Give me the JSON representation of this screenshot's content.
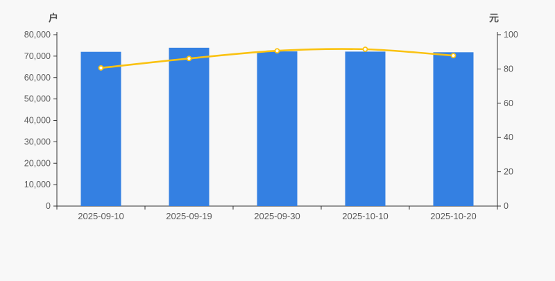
{
  "page": {
    "background": "#f8f8f8"
  },
  "chart_data": {
    "type": "bar",
    "subtype": "bar-and-line-dual-axis",
    "categories": [
      "2025-09-10",
      "2025-09-19",
      "2025-09-30",
      "2025-10-10",
      "2025-10-20"
    ],
    "series": [
      {
        "type": "bar",
        "axis": "left",
        "values": [
          72000,
          73900,
          72200,
          72100,
          71800
        ],
        "color": "#3480e2"
      },
      {
        "type": "line",
        "axis": "right",
        "values": [
          80.6,
          86.1,
          90.6,
          91.5,
          87.8
        ],
        "color": "#fac211",
        "marker_fill": "#ffffff",
        "smooth": true
      }
    ],
    "left_axis": {
      "name": "户",
      "min": 0,
      "max": 80000,
      "step": 10000,
      "tick_labels": [
        "0",
        "10,000",
        "20,000",
        "30,000",
        "40,000",
        "50,000",
        "60,000",
        "70,000",
        "80,000"
      ]
    },
    "right_axis": {
      "name": "元",
      "min": 0,
      "max": 100,
      "step": 20,
      "tick_labels": [
        "0",
        "20",
        "40",
        "60",
        "80",
        "100"
      ]
    },
    "grid": false,
    "legend": false,
    "axis_line_color": "#333333",
    "tick_label_color": "#595959",
    "title": "",
    "xlabel": "",
    "ylabel_left": "户",
    "ylabel_right": "元"
  }
}
